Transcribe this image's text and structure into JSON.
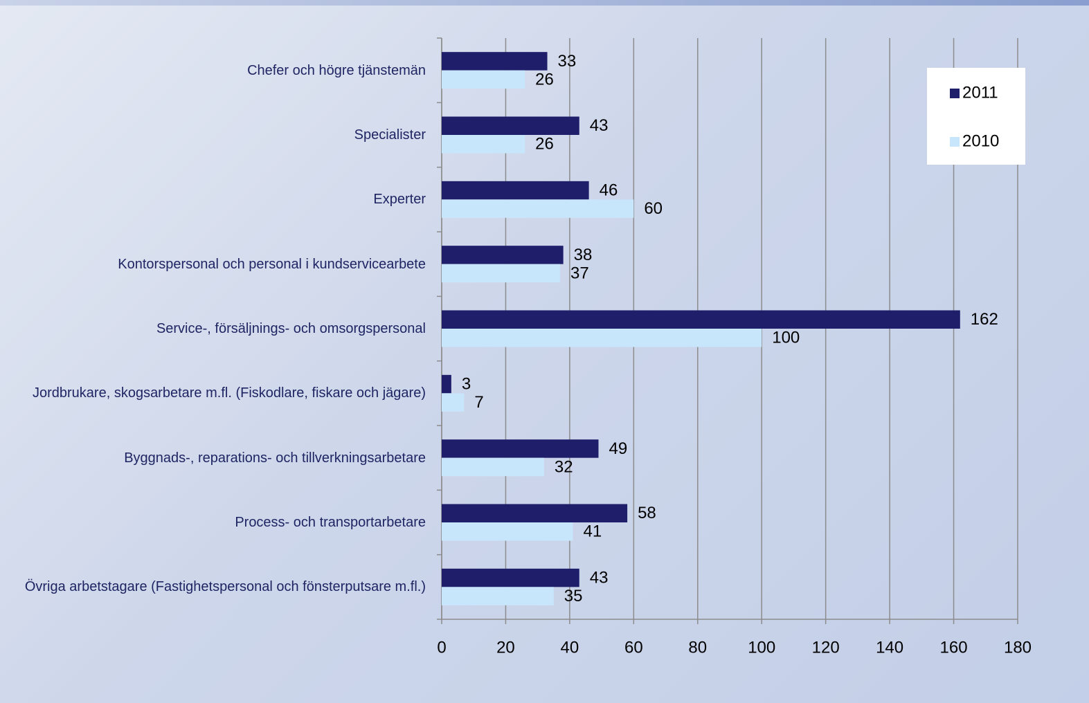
{
  "chart_data": {
    "type": "bar",
    "orientation": "horizontal",
    "categories": [
      "Chefer och högre tjänstemän",
      "Specialister",
      "Experter",
      "Kontorspersonal och personal i kundservicearbete",
      "Service-, försäljnings- och omsorgspersonal",
      "Jordbrukare, skogsarbetare m.fl. (Fiskodlare, fiskare och jägare)",
      "Byggnads-, reparations- och tillverkningsarbetare",
      "Process- och transportarbetare",
      "Övriga arbetstagare (Fastighetspersonal och fönsterputsare m.fl.)"
    ],
    "series": [
      {
        "name": "2011",
        "color": "#1e1e6a",
        "values": [
          33,
          43,
          46,
          38,
          162,
          3,
          49,
          58,
          43
        ]
      },
      {
        "name": "2010",
        "color": "#c8e6fb",
        "values": [
          26,
          26,
          60,
          37,
          100,
          7,
          32,
          41,
          35
        ]
      }
    ],
    "xlim": [
      0,
      180
    ],
    "xticks": [
      0,
      20,
      40,
      60,
      80,
      100,
      120,
      140,
      160,
      180
    ],
    "grid": true,
    "legend": "upper right"
  }
}
